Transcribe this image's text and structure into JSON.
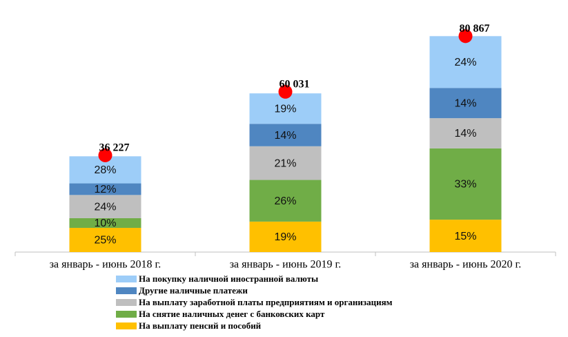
{
  "chart_data": {
    "type": "stacked_bar",
    "categories": [
      "за январь - июнь 2018 г.",
      "за январь - июнь 2019 г.",
      "за январь - июнь 2020 г."
    ],
    "series": [
      {
        "name": "На выплату пенсий и пособий",
        "color": "#ffc000",
        "values": [
          25,
          19,
          15
        ],
        "value_labels": [
          "25%",
          "19%",
          "15%"
        ]
      },
      {
        "name": "На снятие наличных денег с банковских карт",
        "color": "#70ad47",
        "values": [
          10,
          26,
          33
        ],
        "value_labels": [
          "10%",
          "26%",
          "33%"
        ]
      },
      {
        "name": "На выплату заработной платы предприятиям и организациям",
        "color": "#bfbfbf",
        "values": [
          24,
          21,
          14
        ],
        "value_labels": [
          "24%",
          "21%",
          "14%"
        ]
      },
      {
        "name": "Другие наличные платежи",
        "color": "#4f86c1",
        "values": [
          12,
          14,
          14
        ],
        "value_labels": [
          "12%",
          "14%",
          "14%"
        ]
      },
      {
        "name": "На покупку наличной иностранной валюты",
        "color": "#9dcdf8",
        "values": [
          28,
          19,
          24
        ],
        "value_labels": [
          "28%",
          "19%",
          "24%"
        ]
      }
    ],
    "totals": {
      "color": "#ff0000",
      "values": [
        36227,
        60031,
        80867
      ],
      "value_labels": [
        "36 227",
        "60 031",
        "80 867"
      ]
    },
    "ylim": [
      0,
      90000
    ]
  }
}
